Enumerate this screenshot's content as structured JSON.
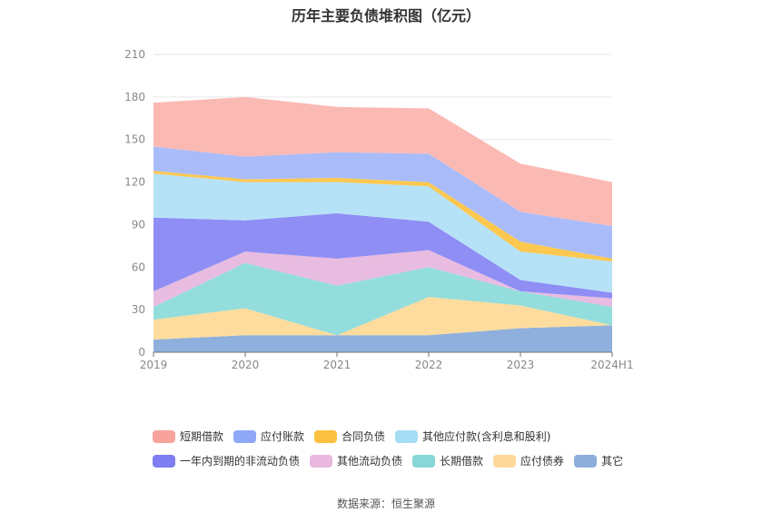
{
  "title": "历年主要负债堆积图（亿元）",
  "source": "数据来源：恒生聚源",
  "chart_data": {
    "type": "area",
    "stacked": true,
    "title": "历年主要负债堆积图（亿元）",
    "categories": [
      "2019",
      "2020",
      "2021",
      "2022",
      "2023",
      "2024H1"
    ],
    "ylim": [
      0,
      210
    ],
    "yticks": [
      0,
      30,
      60,
      90,
      120,
      150,
      180,
      210
    ],
    "grid": true,
    "legend_position": "bottom",
    "series": [
      {
        "name": "其它",
        "color": "#8fb0dc",
        "values": [
          9,
          12,
          12,
          12,
          17,
          19
        ]
      },
      {
        "name": "应付债券",
        "color": "#fddc9d",
        "values": [
          14,
          19,
          0,
          27,
          16,
          0
        ]
      },
      {
        "name": "长期借款",
        "color": "#93dddd",
        "values": [
          9,
          32,
          35,
          21,
          10,
          13
        ]
      },
      {
        "name": "其他流动负债",
        "color": "#e8bce0",
        "values": [
          11,
          8,
          19,
          12,
          0,
          6
        ]
      },
      {
        "name": "一年内到期的非流动负债",
        "color": "#8f8ef5",
        "values": [
          52,
          22,
          32,
          20,
          8,
          4
        ]
      },
      {
        "name": "其他应付款(含利息和股利)",
        "color": "#b6e2f7",
        "values": [
          31,
          27,
          22,
          25,
          20,
          22
        ]
      },
      {
        "name": "合同负债",
        "color": "#fcc850",
        "values": [
          2,
          2,
          3,
          3,
          7,
          2
        ]
      },
      {
        "name": "应付账款",
        "color": "#a9bcf9",
        "values": [
          17,
          16,
          18,
          20,
          21,
          23
        ]
      },
      {
        "name": "短期借款",
        "color": "#fbb9b4",
        "values": [
          31,
          42,
          32,
          32,
          34,
          31
        ]
      }
    ]
  },
  "legend": {
    "row1": [
      {
        "name": "短期借款",
        "color": "#f7a39b"
      },
      {
        "name": "应付账款",
        "color": "#8fa8f7"
      },
      {
        "name": "合同负债",
        "color": "#fbc03f"
      },
      {
        "name": "其他应付款(含利息和股利)",
        "color": "#a6ddf5"
      }
    ],
    "row2": [
      {
        "name": "一年内到期的非流动负债",
        "color": "#7f7ef2"
      },
      {
        "name": "其他流动负债",
        "color": "#e8b8df"
      },
      {
        "name": "长期借款",
        "color": "#86d7d6"
      },
      {
        "name": "应付债券",
        "color": "#fdd89a"
      },
      {
        "name": "其它",
        "color": "#8eaedb"
      }
    ]
  }
}
